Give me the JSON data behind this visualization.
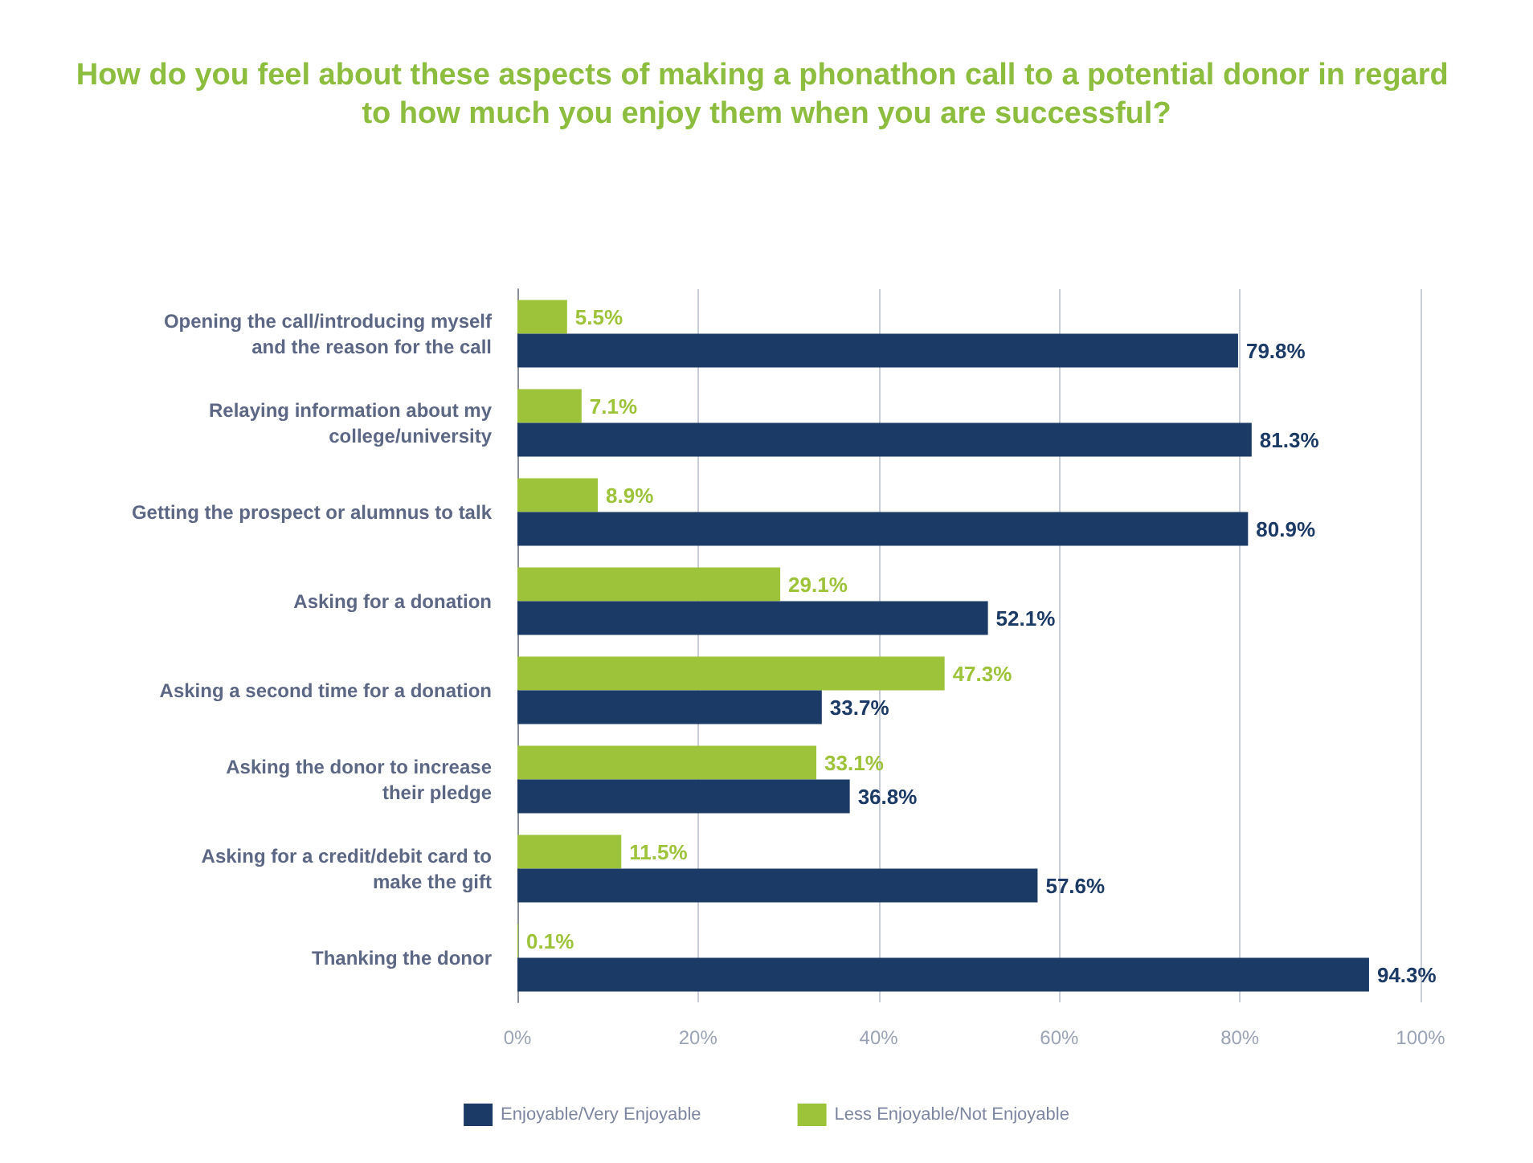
{
  "chart_data": {
    "type": "bar",
    "orientation": "horizontal",
    "title": "How do you feel about these aspects of making a phonathon call to a potential donor in regard to how much you enjoy them when you are successful?",
    "categories": [
      "Opening the call/introducing myself\nand the reason for the call",
      "Relaying information about my\ncollege/university",
      "Getting the prospect or alumnus to talk",
      "Asking for a donation",
      "Asking a second time for a donation",
      "Asking the donor to increase\ntheir pledge",
      "Asking for a credit/debit card to\nmake the gift",
      "Thanking the donor"
    ],
    "series": [
      {
        "name": "Enjoyable/Very Enjoyable",
        "color": "#1b3a66",
        "values": [
          79.8,
          81.3,
          80.9,
          52.1,
          33.7,
          36.8,
          57.6,
          94.3
        ],
        "value_labels": [
          "79.8%",
          "81.3%",
          "80.9%",
          "52.1%",
          "33.7%",
          "36.8%",
          "57.6%",
          "94.3%"
        ]
      },
      {
        "name": "Less Enjoyable/Not Enjoyable",
        "color": "#9dc33b",
        "values": [
          5.5,
          7.1,
          8.9,
          29.1,
          47.3,
          33.1,
          11.5,
          0.1
        ],
        "value_labels": [
          "5.5%",
          "7.1%",
          "8.9%",
          "29.1%",
          "47.3%",
          "33.1%",
          "11.5%",
          "0.1%"
        ]
      }
    ],
    "xlim": [
      0,
      100
    ],
    "xticks": [
      {
        "value": 0,
        "label": "0%"
      },
      {
        "value": 20,
        "label": "20%"
      },
      {
        "value": 40,
        "label": "40%"
      },
      {
        "value": 60,
        "label": "60%"
      },
      {
        "value": 80,
        "label": "80%"
      },
      {
        "value": 100,
        "label": "100%"
      }
    ],
    "grid": "x",
    "legend": "bottom"
  }
}
